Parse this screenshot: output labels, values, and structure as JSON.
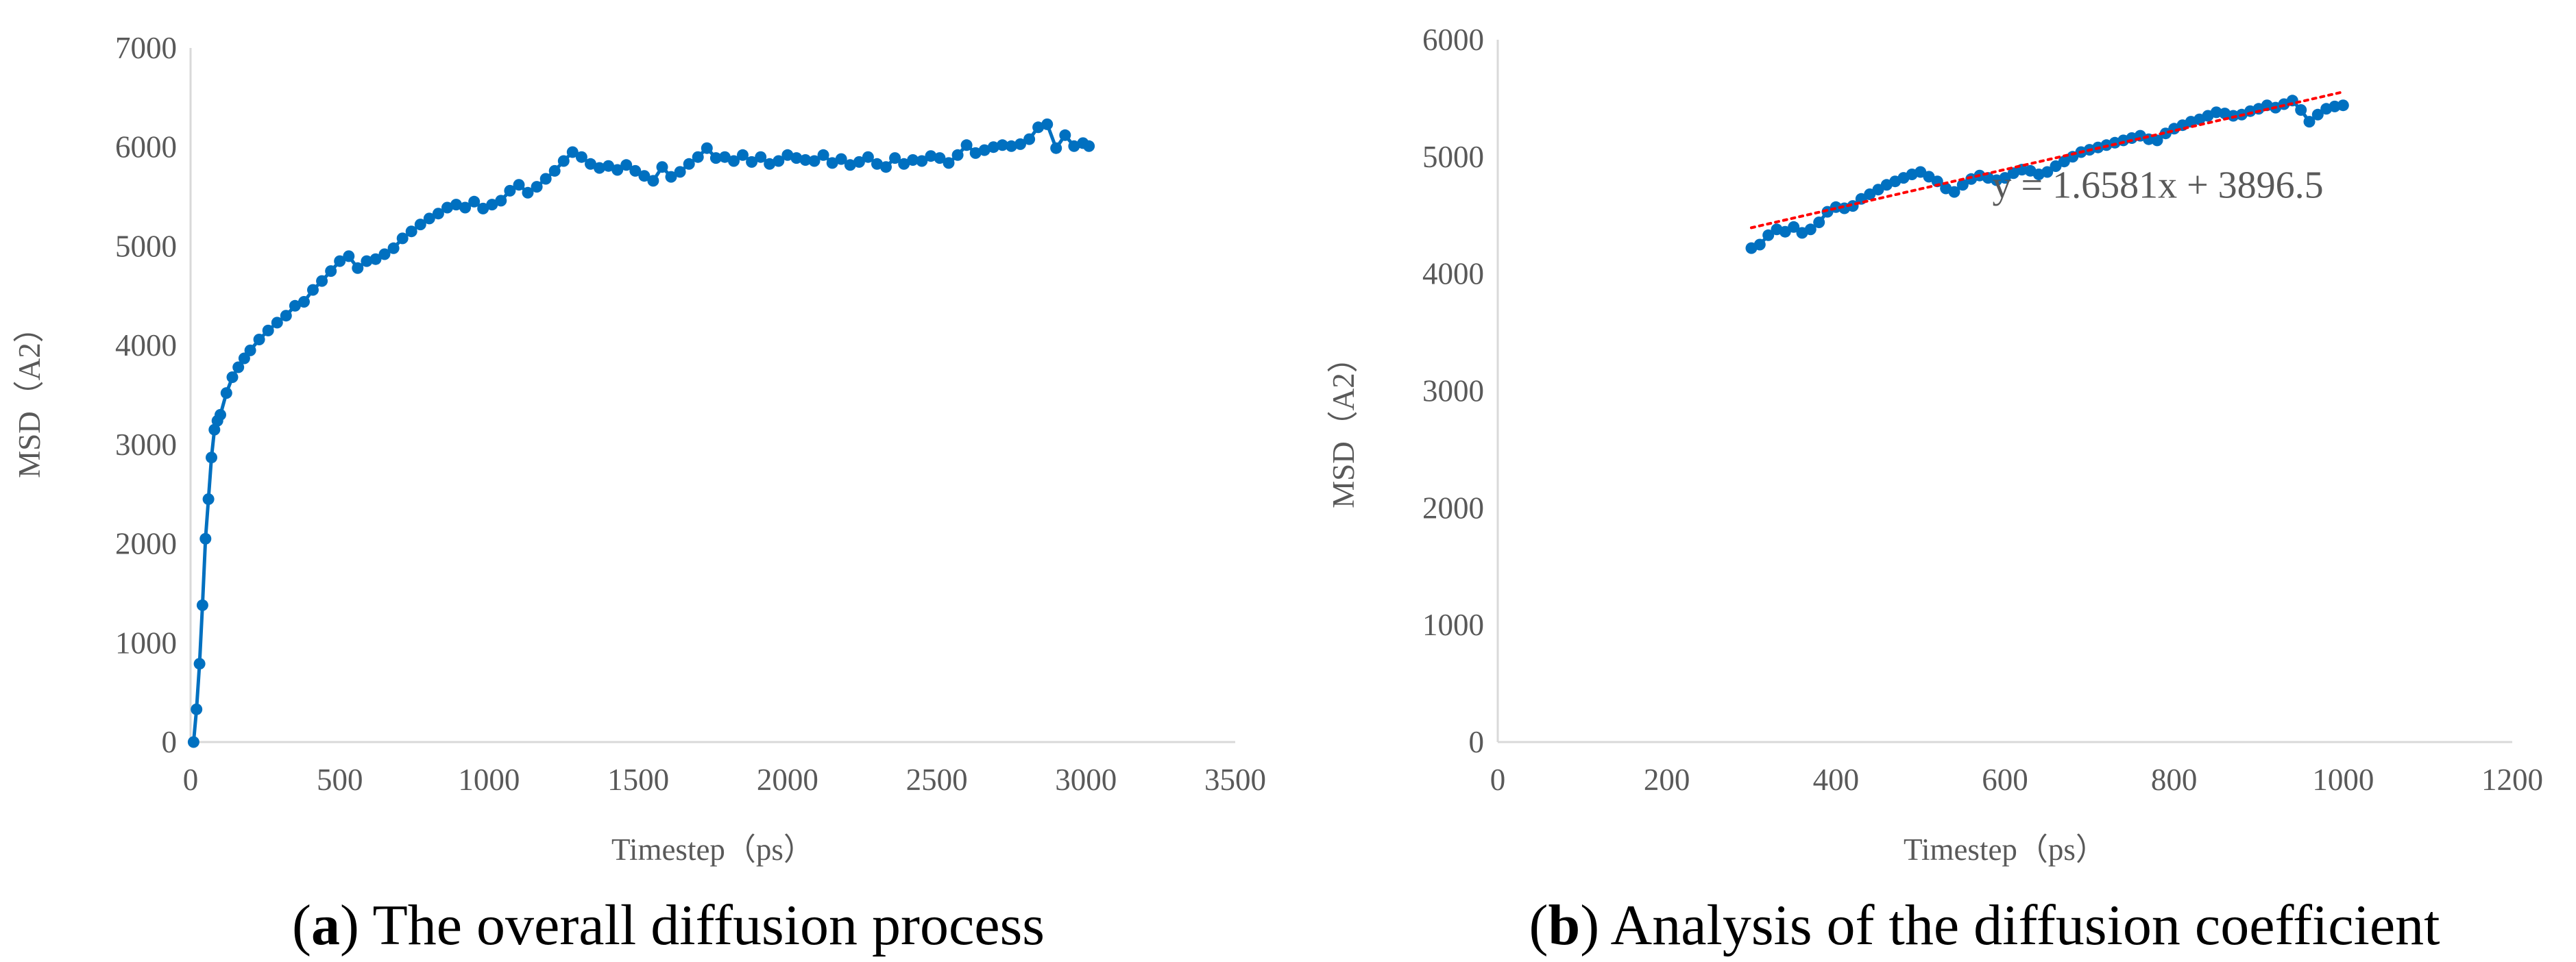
{
  "colors": {
    "series": "#0070C0",
    "trendline": "#FF0000",
    "axis": "#D9D9D9",
    "text": "#595959"
  },
  "chart_data": [
    {
      "id": "a",
      "type": "line",
      "marker": "circle",
      "grid": false,
      "legend": "none",
      "xlabel": "Timestep（ps）",
      "ylabel": "MSD（A2）",
      "xlim": [
        0,
        3500
      ],
      "ylim": [
        0,
        7000
      ],
      "xticks": [
        "0",
        "500",
        "1000",
        "1500",
        "2000",
        "2500",
        "3000",
        "3500"
      ],
      "yticks": [
        "0",
        "1000",
        "2000",
        "3000",
        "4000",
        "5000",
        "6000",
        "7000"
      ],
      "caption": {
        "letter": "a",
        "open": "(",
        "close": ") ",
        "text": "The overall diffusion process"
      },
      "series": [
        {
          "x": [
            10,
            20,
            30,
            40,
            50,
            60,
            70,
            80,
            90,
            100,
            120,
            140,
            160,
            180,
            200,
            230,
            260,
            290,
            320,
            350,
            380,
            410,
            440,
            470,
            500,
            530,
            560,
            590,
            620,
            650,
            680,
            710,
            740,
            770,
            800,
            830,
            860,
            890,
            920,
            950,
            980,
            1010,
            1040,
            1070,
            1100,
            1130,
            1160,
            1190,
            1220,
            1250,
            1280,
            1310,
            1340,
            1370,
            1400,
            1430,
            1460,
            1490,
            1520,
            1550,
            1580,
            1610,
            1640,
            1670,
            1700,
            1730,
            1760,
            1790,
            1820,
            1850,
            1880,
            1910,
            1940,
            1970,
            2000,
            2030,
            2060,
            2090,
            2120,
            2150,
            2180,
            2210,
            2240,
            2270,
            2300,
            2330,
            2360,
            2390,
            2420,
            2450,
            2480,
            2510,
            2540,
            2570,
            2600,
            2630,
            2660,
            2690,
            2720,
            2750,
            2780,
            2810,
            2840,
            2870,
            2900,
            2930,
            2960,
            2990,
            3010
          ],
          "y": [
            0,
            330,
            790,
            1380,
            2050,
            2450,
            2870,
            3150,
            3240,
            3300,
            3520,
            3680,
            3780,
            3870,
            3950,
            4060,
            4150,
            4230,
            4300,
            4400,
            4440,
            4560,
            4650,
            4750,
            4850,
            4900,
            4780,
            4850,
            4870,
            4920,
            4980,
            5080,
            5150,
            5220,
            5280,
            5330,
            5390,
            5420,
            5390,
            5450,
            5380,
            5420,
            5460,
            5560,
            5620,
            5540,
            5600,
            5680,
            5760,
            5860,
            5950,
            5900,
            5830,
            5790,
            5810,
            5770,
            5820,
            5760,
            5710,
            5660,
            5800,
            5700,
            5750,
            5830,
            5900,
            5990,
            5890,
            5900,
            5860,
            5920,
            5850,
            5900,
            5830,
            5860,
            5920,
            5890,
            5870,
            5860,
            5920,
            5840,
            5880,
            5820,
            5850,
            5900,
            5830,
            5800,
            5890,
            5830,
            5870,
            5860,
            5910,
            5890,
            5840,
            5920,
            6020,
            5940,
            5970,
            6000,
            6020,
            6010,
            6030,
            6080,
            6200,
            6230,
            5990,
            6120,
            6010,
            6040,
            6010
          ]
        }
      ]
    },
    {
      "id": "b",
      "type": "line",
      "marker": "circle",
      "grid": false,
      "legend": "none",
      "xlabel": "Timestep（ps）",
      "ylabel": "MSD（A2）",
      "xlim": [
        0,
        1200
      ],
      "ylim": [
        0,
        6000
      ],
      "xticks": [
        "0",
        "200",
        "400",
        "600",
        "800",
        "1000",
        "1200"
      ],
      "yticks": [
        "0",
        "1000",
        "2000",
        "3000",
        "4000",
        "5000",
        "6000"
      ],
      "caption": {
        "letter": "b",
        "open": "(",
        "close": ") ",
        "text": "Analysis of the diffusion coefficient"
      },
      "trendline": {
        "equation": "y = 1.6581x + 3896.5",
        "slope": 1.6581,
        "intercept": 3896.5,
        "x_range": [
          300,
          1000
        ]
      },
      "series": [
        {
          "x": [
            300,
            310,
            320,
            330,
            340,
            350,
            360,
            370,
            380,
            390,
            400,
            410,
            420,
            430,
            440,
            450,
            460,
            470,
            480,
            490,
            500,
            510,
            520,
            530,
            540,
            550,
            560,
            570,
            580,
            590,
            600,
            610,
            620,
            630,
            640,
            650,
            660,
            670,
            680,
            690,
            700,
            710,
            720,
            730,
            740,
            750,
            760,
            770,
            780,
            790,
            800,
            810,
            820,
            830,
            840,
            850,
            860,
            870,
            880,
            890,
            900,
            910,
            920,
            930,
            940,
            950,
            960,
            970,
            980,
            990,
            1000
          ],
          "y": [
            4220,
            4250,
            4330,
            4380,
            4360,
            4400,
            4350,
            4380,
            4440,
            4530,
            4570,
            4560,
            4580,
            4640,
            4680,
            4720,
            4760,
            4790,
            4820,
            4850,
            4870,
            4830,
            4790,
            4730,
            4700,
            4760,
            4810,
            4840,
            4820,
            4800,
            4820,
            4860,
            4890,
            4880,
            4850,
            4870,
            4920,
            4960,
            5000,
            5040,
            5060,
            5080,
            5100,
            5120,
            5140,
            5160,
            5180,
            5150,
            5140,
            5200,
            5240,
            5270,
            5300,
            5320,
            5350,
            5380,
            5370,
            5350,
            5360,
            5390,
            5410,
            5440,
            5420,
            5450,
            5480,
            5400,
            5300,
            5360,
            5410,
            5430,
            5440
          ]
        }
      ]
    }
  ]
}
